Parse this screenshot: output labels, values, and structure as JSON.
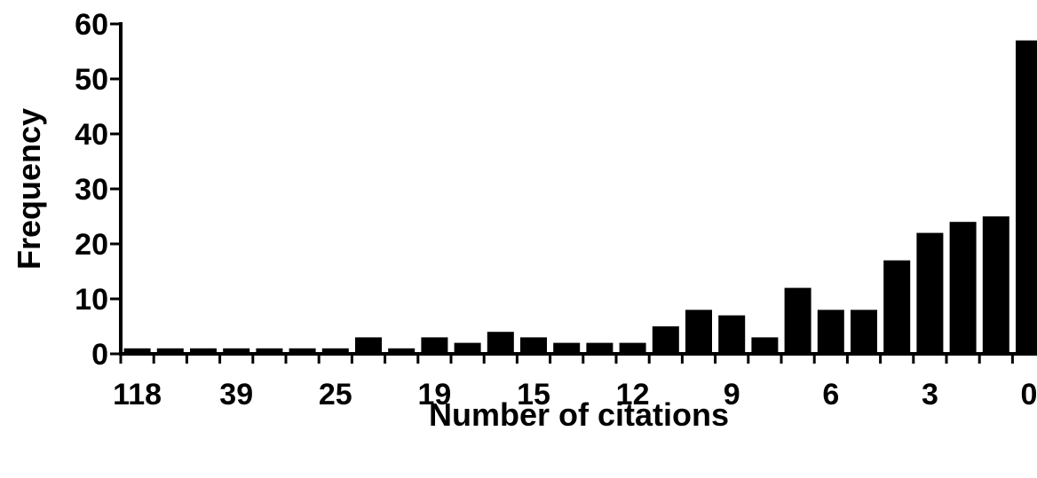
{
  "chart_data": {
    "type": "bar",
    "xlabel": "Number of citations",
    "ylabel": "Frequency",
    "ylim": [
      0,
      60
    ],
    "yticks": [
      "0",
      "10",
      "20",
      "30",
      "40",
      "50",
      "60"
    ],
    "xtick_labels": [
      "118",
      "39",
      "25",
      "19",
      "15",
      "12",
      "9",
      "6",
      "3",
      "0"
    ],
    "values": [
      1,
      1,
      1,
      1,
      1,
      1,
      1,
      3,
      1,
      3,
      2,
      4,
      3,
      2,
      2,
      2,
      5,
      8,
      7,
      3,
      12,
      8,
      8,
      17,
      22,
      24,
      25,
      57
    ],
    "grid": false,
    "legend": "none",
    "bar_color": "#000000"
  }
}
